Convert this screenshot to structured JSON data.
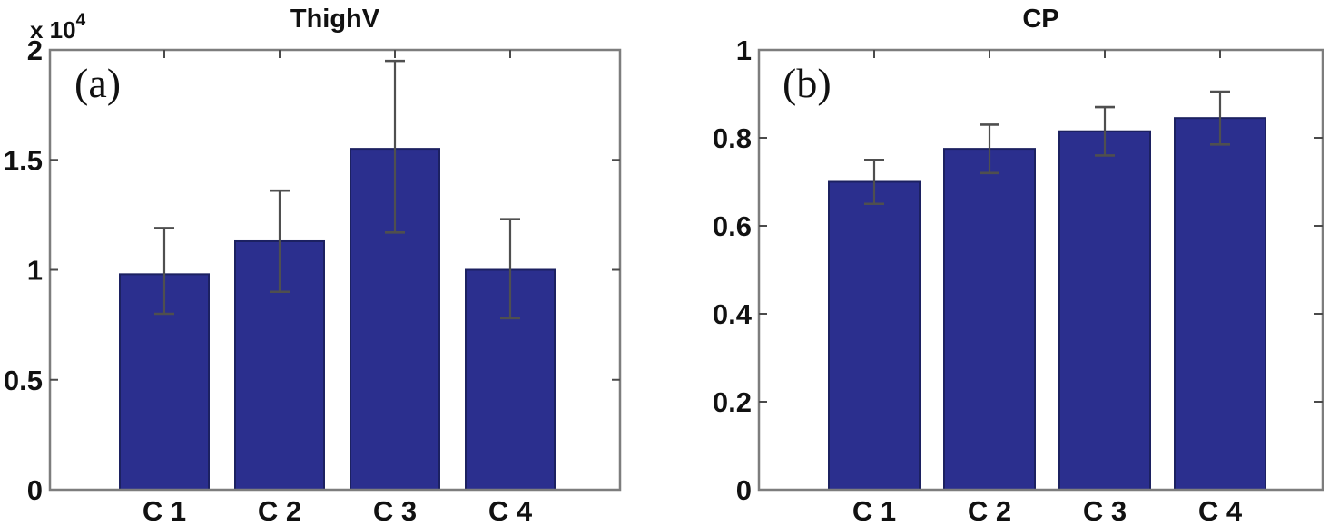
{
  "figure": {
    "background": "#ffffff",
    "description": "Two-panel MATLAB-style bar chart figure with error bars"
  },
  "colors": {
    "bar_fill": "#2b2f8e",
    "bar_edge": "#1c2161",
    "axis_box": "#7d7d7d",
    "tick": "#4a4a4a",
    "error_bar": "#4f4f4f",
    "text": "#111111"
  },
  "chart_data": [
    {
      "type": "bar",
      "panel_label": "(a)",
      "title": "ThighV",
      "categories": [
        "C 1",
        "C 2",
        "C 3",
        "C 4"
      ],
      "values": [
        0.98,
        1.13,
        1.55,
        1.0
      ],
      "error_low": [
        0.8,
        0.9,
        1.17,
        0.78
      ],
      "error_high": [
        1.19,
        1.36,
        1.95,
        1.23
      ],
      "xlabel": "",
      "ylabel": "",
      "ylim": [
        0,
        2
      ],
      "y_tick_values": [
        0,
        0.5,
        1,
        1.5,
        2
      ],
      "y_ticks": [
        "0",
        "0.5",
        "1",
        "1.5",
        "2"
      ],
      "y_multiplier": {
        "base": "x 10",
        "exponent": "4"
      },
      "grid": false,
      "legend": "none"
    },
    {
      "type": "bar",
      "panel_label": "(b)",
      "title": "CP",
      "categories": [
        "C 1",
        "C 2",
        "C 3",
        "C 4"
      ],
      "values": [
        0.7,
        0.775,
        0.815,
        0.845
      ],
      "error_low": [
        0.65,
        0.72,
        0.76,
        0.785
      ],
      "error_high": [
        0.75,
        0.83,
        0.87,
        0.905
      ],
      "xlabel": "",
      "ylabel": "",
      "ylim": [
        0,
        1
      ],
      "y_tick_values": [
        0,
        0.2,
        0.4,
        0.6,
        0.8,
        1
      ],
      "y_ticks": [
        "0",
        "0.2",
        "0.4",
        "0.6",
        "0.8",
        "1"
      ],
      "grid": false,
      "legend": "none"
    }
  ]
}
